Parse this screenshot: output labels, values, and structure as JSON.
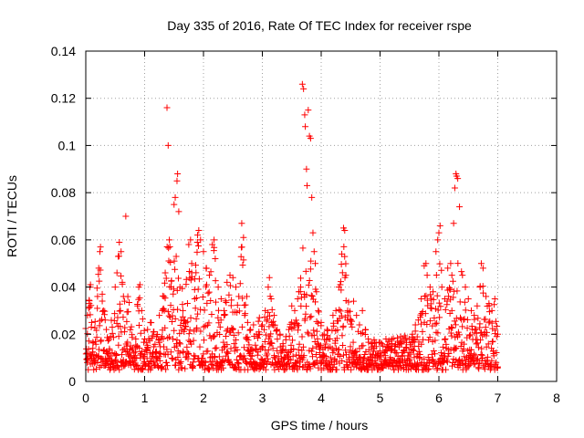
{
  "chart_data": {
    "type": "scatter",
    "title": "Day 335 of 2016, Rate Of TEC Index for receiver rspe",
    "xlabel": "GPS time / hours",
    "ylabel": "ROTI / TECUs",
    "xlim": [
      0,
      8
    ],
    "ylim": [
      0,
      0.14
    ],
    "x_ticks": [
      0,
      1,
      2,
      3,
      4,
      5,
      6,
      7,
      8
    ],
    "y_ticks": [
      0,
      0.02,
      0.04,
      0.06,
      0.08,
      0.1,
      0.12,
      0.14
    ],
    "x_tick_labels": [
      "0",
      "1",
      "2",
      "3",
      "4",
      "5",
      "6",
      "7",
      "8"
    ],
    "y_tick_labels": [
      "0",
      "0.02",
      "0.04",
      "0.06",
      "0.08",
      "0.1",
      "0.12",
      "0.14"
    ],
    "grid": true,
    "marker": "plus",
    "color": "#ff0000",
    "x_data_range": [
      0,
      7.0
    ],
    "series": [
      {
        "name": "ROTI",
        "points": [
          [
            0.02,
            0.012
          ],
          [
            0.03,
            0.028
          ],
          [
            0.05,
            0.031
          ],
          [
            0.06,
            0.033
          ],
          [
            0.07,
            0.04
          ],
          [
            0.08,
            0.041
          ],
          [
            0.1,
            0.025
          ],
          [
            0.12,
            0.014
          ],
          [
            0.15,
            0.009
          ],
          [
            0.18,
            0.011
          ],
          [
            0.2,
            0.036
          ],
          [
            0.22,
            0.048
          ],
          [
            0.24,
            0.055
          ],
          [
            0.25,
            0.057
          ],
          [
            0.28,
            0.037
          ],
          [
            0.3,
            0.03
          ],
          [
            0.33,
            0.026
          ],
          [
            0.35,
            0.022
          ],
          [
            0.38,
            0.012
          ],
          [
            0.4,
            0.01
          ],
          [
            0.42,
            0.019
          ],
          [
            0.45,
            0.023
          ],
          [
            0.5,
            0.04
          ],
          [
            0.53,
            0.046
          ],
          [
            0.55,
            0.053
          ],
          [
            0.57,
            0.059
          ],
          [
            0.6,
            0.055
          ],
          [
            0.62,
            0.042
          ],
          [
            0.64,
            0.036
          ],
          [
            0.66,
            0.034
          ],
          [
            0.68,
            0.07
          ],
          [
            0.7,
            0.015
          ],
          [
            0.75,
            0.012
          ],
          [
            0.8,
            0.014
          ],
          [
            0.85,
            0.018
          ],
          [
            0.88,
            0.032
          ],
          [
            0.9,
            0.04
          ],
          [
            0.92,
            0.041
          ],
          [
            0.95,
            0.03
          ],
          [
            1.0,
            0.018
          ],
          [
            1.05,
            0.022
          ],
          [
            1.1,
            0.025
          ],
          [
            1.15,
            0.021
          ],
          [
            1.2,
            0.019
          ],
          [
            1.25,
            0.028
          ],
          [
            1.3,
            0.03
          ],
          [
            1.33,
            0.036
          ],
          [
            1.35,
            0.046
          ],
          [
            1.38,
            0.116
          ],
          [
            1.4,
            0.1
          ],
          [
            1.42,
            0.06
          ],
          [
            1.45,
            0.04
          ],
          [
            1.5,
            0.075
          ],
          [
            1.52,
            0.078
          ],
          [
            1.55,
            0.085
          ],
          [
            1.56,
            0.088
          ],
          [
            1.58,
            0.072
          ],
          [
            1.6,
            0.04
          ],
          [
            1.65,
            0.03
          ],
          [
            1.7,
            0.025
          ],
          [
            1.75,
            0.058
          ],
          [
            1.78,
            0.06
          ],
          [
            1.8,
            0.05
          ],
          [
            1.85,
            0.035
          ],
          [
            1.88,
            0.022
          ],
          [
            1.9,
            0.062
          ],
          [
            1.92,
            0.064
          ],
          [
            1.95,
            0.06
          ],
          [
            2.0,
            0.055
          ],
          [
            2.05,
            0.048
          ],
          [
            2.1,
            0.045
          ],
          [
            2.15,
            0.058
          ],
          [
            2.18,
            0.06
          ],
          [
            2.2,
            0.052
          ],
          [
            2.25,
            0.04
          ],
          [
            2.3,
            0.035
          ],
          [
            2.35,
            0.03
          ],
          [
            2.4,
            0.042
          ],
          [
            2.45,
            0.045
          ],
          [
            2.5,
            0.044
          ],
          [
            2.55,
            0.04
          ],
          [
            2.6,
            0.036
          ],
          [
            2.65,
            0.067
          ],
          [
            2.68,
            0.061
          ],
          [
            2.7,
            0.028
          ],
          [
            2.75,
            0.025
          ],
          [
            2.8,
            0.022
          ],
          [
            2.85,
            0.024
          ],
          [
            2.9,
            0.02
          ],
          [
            2.95,
            0.027
          ],
          [
            3.0,
            0.024
          ],
          [
            3.05,
            0.03
          ],
          [
            3.1,
            0.04
          ],
          [
            3.12,
            0.044
          ],
          [
            3.15,
            0.035
          ],
          [
            3.2,
            0.028
          ],
          [
            3.25,
            0.022
          ],
          [
            3.3,
            0.02
          ],
          [
            3.35,
            0.016
          ],
          [
            3.4,
            0.019
          ],
          [
            3.45,
            0.022
          ],
          [
            3.5,
            0.032
          ],
          [
            3.55,
            0.03
          ],
          [
            3.6,
            0.035
          ],
          [
            3.62,
            0.038
          ],
          [
            3.65,
            0.04
          ],
          [
            3.68,
            0.126
          ],
          [
            3.7,
            0.124
          ],
          [
            3.72,
            0.113
          ],
          [
            3.73,
            0.108
          ],
          [
            3.75,
            0.09
          ],
          [
            3.76,
            0.083
          ],
          [
            3.78,
            0.115
          ],
          [
            3.8,
            0.104
          ],
          [
            3.82,
            0.103
          ],
          [
            3.84,
            0.078
          ],
          [
            3.86,
            0.063
          ],
          [
            3.88,
            0.055
          ],
          [
            3.9,
            0.05
          ],
          [
            3.92,
            0.038
          ],
          [
            3.95,
            0.03
          ],
          [
            4.0,
            0.025
          ],
          [
            4.05,
            0.02
          ],
          [
            4.1,
            0.022
          ],
          [
            4.15,
            0.018
          ],
          [
            4.2,
            0.028
          ],
          [
            4.25,
            0.03
          ],
          [
            4.3,
            0.04
          ],
          [
            4.35,
            0.054
          ],
          [
            4.38,
            0.065
          ],
          [
            4.4,
            0.064
          ],
          [
            4.42,
            0.045
          ],
          [
            4.45,
            0.03
          ],
          [
            4.5,
            0.026
          ],
          [
            4.55,
            0.034
          ],
          [
            4.6,
            0.028
          ],
          [
            4.65,
            0.024
          ],
          [
            4.7,
            0.03
          ],
          [
            4.75,
            0.022
          ],
          [
            4.8,
            0.018
          ],
          [
            4.85,
            0.016
          ],
          [
            4.9,
            0.014
          ],
          [
            4.95,
            0.01
          ],
          [
            5.0,
            0.012
          ],
          [
            5.05,
            0.015
          ],
          [
            5.1,
            0.018
          ],
          [
            5.15,
            0.014
          ],
          [
            5.2,
            0.016
          ],
          [
            5.25,
            0.015
          ],
          [
            5.3,
            0.017
          ],
          [
            5.35,
            0.019
          ],
          [
            5.4,
            0.013
          ],
          [
            5.45,
            0.014
          ],
          [
            5.5,
            0.018
          ],
          [
            5.55,
            0.02
          ],
          [
            5.6,
            0.024
          ],
          [
            5.65,
            0.026
          ],
          [
            5.7,
            0.035
          ],
          [
            5.75,
            0.049
          ],
          [
            5.78,
            0.05
          ],
          [
            5.8,
            0.045
          ],
          [
            5.85,
            0.04
          ],
          [
            5.9,
            0.038
          ],
          [
            5.95,
            0.055
          ],
          [
            5.98,
            0.06
          ],
          [
            6.0,
            0.063
          ],
          [
            6.02,
            0.066
          ],
          [
            6.05,
            0.04
          ],
          [
            6.1,
            0.035
          ],
          [
            6.15,
            0.048
          ],
          [
            6.2,
            0.05
          ],
          [
            6.22,
            0.045
          ],
          [
            6.25,
            0.067
          ],
          [
            6.27,
            0.082
          ],
          [
            6.29,
            0.088
          ],
          [
            6.3,
            0.087
          ],
          [
            6.32,
            0.086
          ],
          [
            6.35,
            0.074
          ],
          [
            6.4,
            0.045
          ],
          [
            6.45,
            0.04
          ],
          [
            6.5,
            0.035
          ],
          [
            6.55,
            0.03
          ],
          [
            6.6,
            0.028
          ],
          [
            6.65,
            0.032
          ],
          [
            6.7,
            0.04
          ],
          [
            6.72,
            0.05
          ],
          [
            6.75,
            0.048
          ],
          [
            6.8,
            0.036
          ],
          [
            6.85,
            0.033
          ],
          [
            6.9,
            0.03
          ],
          [
            6.95,
            0.035
          ],
          [
            7.0,
            0.02
          ]
        ]
      }
    ]
  }
}
